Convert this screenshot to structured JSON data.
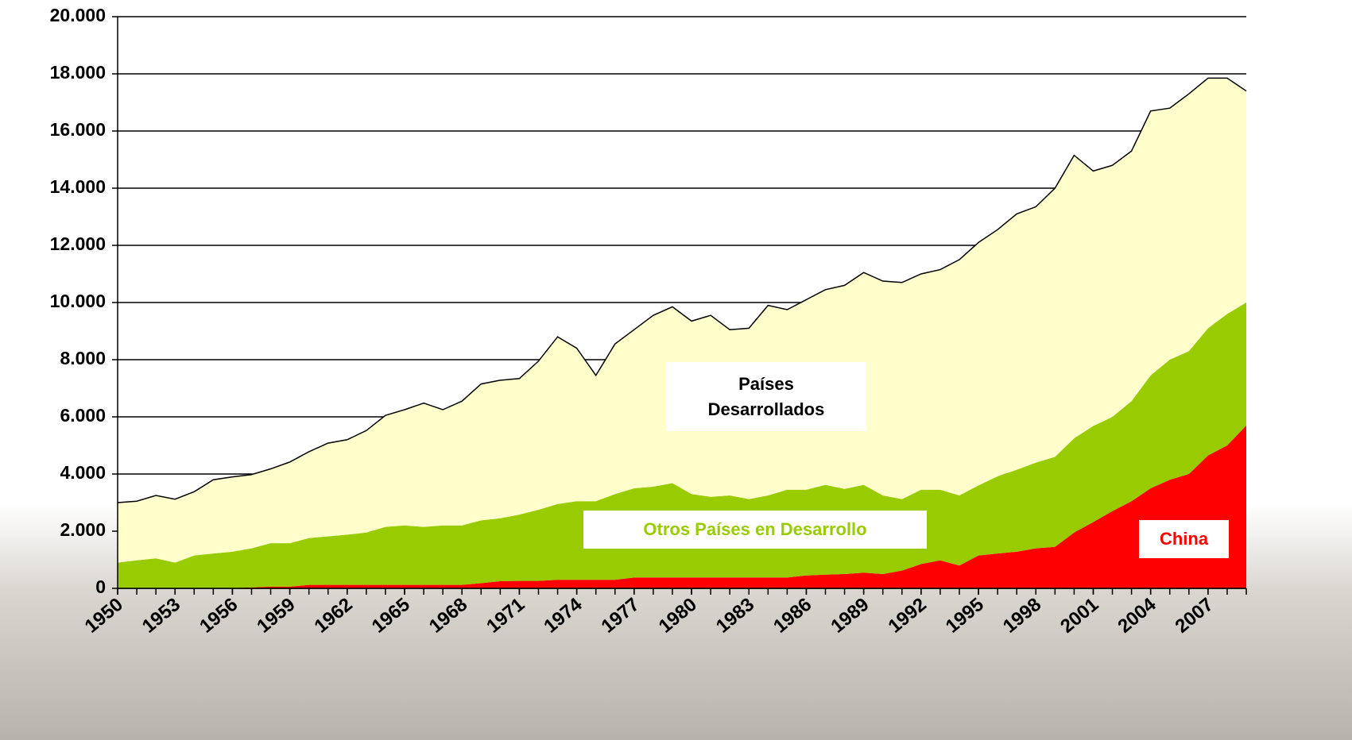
{
  "chart_data": {
    "type": "stacked-area",
    "x": [
      1950,
      1951,
      1952,
      1953,
      1954,
      1955,
      1956,
      1957,
      1958,
      1959,
      1960,
      1961,
      1962,
      1963,
      1964,
      1965,
      1966,
      1967,
      1968,
      1969,
      1970,
      1971,
      1972,
      1973,
      1974,
      1975,
      1976,
      1977,
      1978,
      1979,
      1980,
      1981,
      1982,
      1983,
      1984,
      1985,
      1986,
      1987,
      1988,
      1989,
      1990,
      1991,
      1992,
      1993,
      1994,
      1995,
      1996,
      1997,
      1998,
      1999,
      2000,
      2001,
      2002,
      2003,
      2004,
      2005,
      2006,
      2007,
      2008,
      2009
    ],
    "xlim": [
      1950,
      2009
    ],
    "xticks": [
      1950,
      1953,
      1956,
      1959,
      1962,
      1965,
      1968,
      1971,
      1974,
      1977,
      1980,
      1983,
      1986,
      1989,
      1992,
      1995,
      1998,
      2001,
      2004,
      2007
    ],
    "ylim": [
      0,
      20000
    ],
    "yticks": [
      0,
      {
        "value": 2000,
        "label": "2.000"
      },
      {
        "value": 4000,
        "label": "4.000"
      },
      {
        "value": 6000,
        "label": "6.000"
      },
      {
        "value": 8000,
        "label": "8.000"
      },
      {
        "value": 10000,
        "label": "10.000"
      },
      {
        "value": 12000,
        "label": "12.000"
      },
      {
        "value": 14000,
        "label": "14.000"
      },
      {
        "value": 16000,
        "label": "16.000"
      },
      {
        "value": 18000,
        "label": "18.000"
      },
      {
        "value": 20000,
        "label": "20.000"
      }
    ],
    "grid": true,
    "series": [
      {
        "name": "China",
        "color": "#ff0000",
        "values": [
          10,
          10,
          10,
          10,
          10,
          10,
          10,
          30,
          60,
          60,
          120,
          120,
          120,
          120,
          120,
          120,
          120,
          120,
          120,
          180,
          250,
          260,
          260,
          300,
          300,
          300,
          300,
          380,
          380,
          380,
          380,
          380,
          380,
          380,
          380,
          380,
          450,
          480,
          500,
          550,
          500,
          620,
          850,
          980,
          800,
          1150,
          1220,
          1280,
          1400,
          1450,
          1950,
          2320,
          2700,
          3050,
          3500,
          3800,
          4000,
          4650,
          5000,
          5700
        ]
      },
      {
        "name": "Otros Países en Desarrollo",
        "color": "#99cc00",
        "values": [
          890,
          970,
          1040,
          890,
          1140,
          1210,
          1270,
          1370,
          1520,
          1520,
          1640,
          1700,
          1760,
          1830,
          2030,
          2080,
          2030,
          2080,
          2080,
          2200,
          2200,
          2320,
          2490,
          2650,
          2750,
          2750,
          3000,
          3120,
          3180,
          3300,
          2920,
          2820,
          2870,
          2740,
          2870,
          3070,
          3000,
          3140,
          2980,
          3070,
          2750,
          2500,
          2600,
          2470,
          2450,
          2450,
          2700,
          2870,
          3000,
          3150,
          3300,
          3360,
          3300,
          3500,
          3950,
          4200,
          4300,
          4450,
          4600,
          4300
        ]
      },
      {
        "name": "Países Desarrollados",
        "color": "#ffffcc",
        "values": [
          2100,
          2070,
          2200,
          2220,
          2230,
          2580,
          2620,
          2580,
          2600,
          2840,
          3020,
          3260,
          3320,
          3570,
          3900,
          4050,
          4330,
          4050,
          4350,
          4770,
          4830,
          4760,
          5200,
          5850,
          5350,
          4400,
          5250,
          5550,
          5990,
          6170,
          6050,
          6350,
          5800,
          5980,
          6650,
          6300,
          6650,
          6830,
          7120,
          7430,
          7500,
          7580,
          7550,
          7700,
          8250,
          8500,
          8630,
          8950,
          8950,
          9400,
          9900,
          8920,
          8800,
          8750,
          9250,
          8800,
          9000,
          8750,
          8250,
          7400
        ]
      }
    ]
  }
}
